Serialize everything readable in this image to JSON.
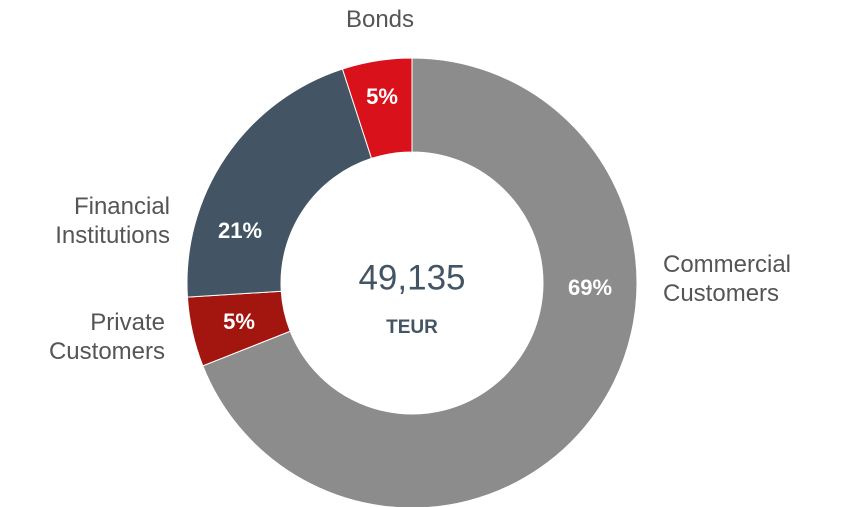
{
  "chart_data": {
    "type": "donut",
    "categories": [
      "Commercial Customers",
      "Private Customers",
      "Financial Institutions",
      "Bonds"
    ],
    "values": [
      69,
      5,
      21,
      5
    ],
    "value_labels": [
      "69%",
      "5%",
      "21%",
      "5%"
    ],
    "colors": [
      "#8c8c8c",
      "#a3150f",
      "#435464",
      "#d8111b"
    ],
    "center_text": "49,135",
    "center_unit": "TEUR"
  }
}
